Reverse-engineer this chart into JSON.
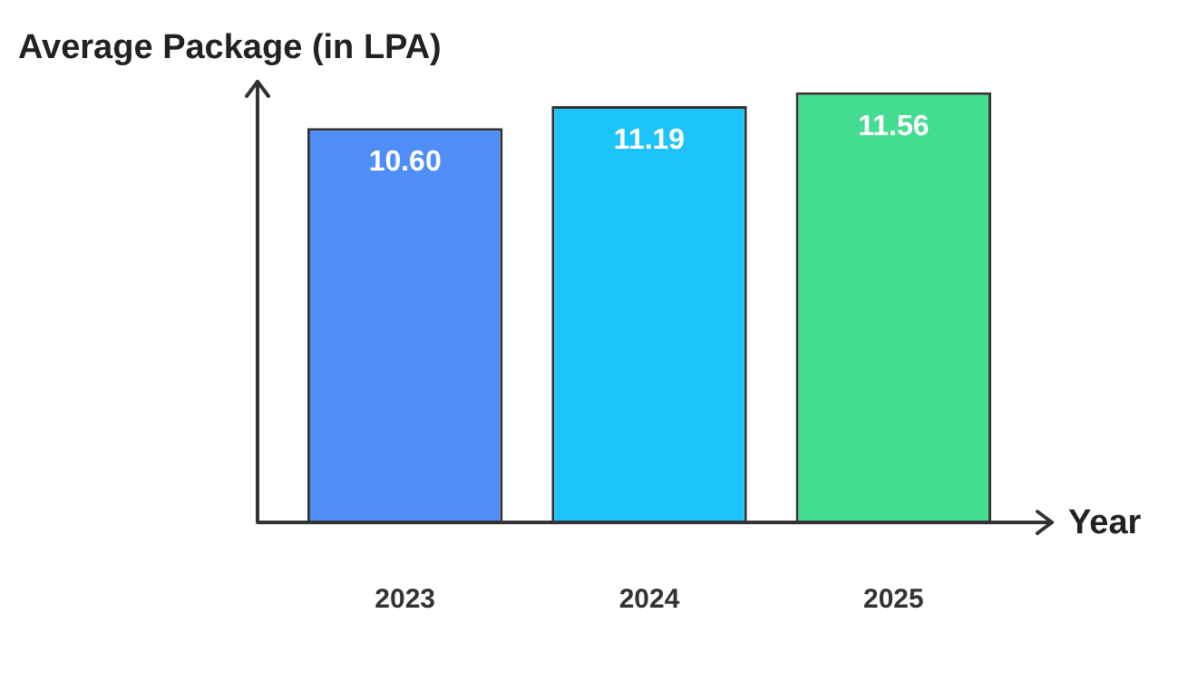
{
  "chart_data": {
    "type": "bar",
    "ylabel": "Average Package (in LPA)",
    "xlabel": "Year",
    "categories": [
      "2023",
      "2024",
      "2025"
    ],
    "values": [
      10.6,
      11.19,
      11.56
    ],
    "colors": [
      "#4f8ef8",
      "#1cc4fb",
      "#44dc90"
    ],
    "value_labels": [
      "10.60",
      "11.19",
      "11.56"
    ],
    "grid": false,
    "legend": false
  }
}
